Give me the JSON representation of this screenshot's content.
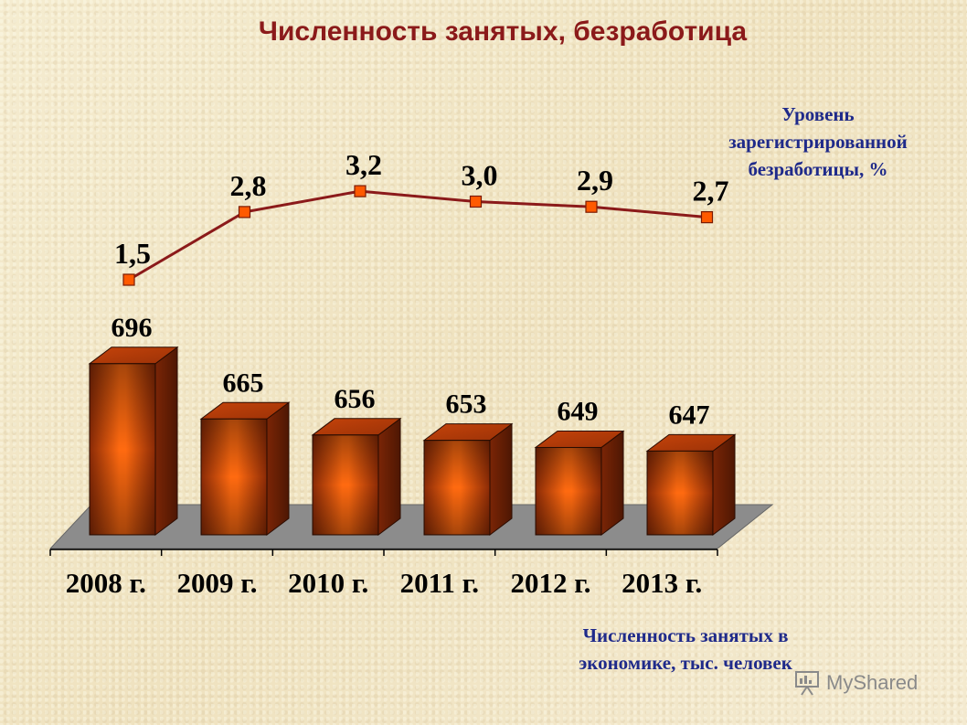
{
  "title": "Численность занятых, безработица",
  "line_legend": "Уровень зарегистрированной безработицы, %",
  "bar_legend": "Численность занятых в экономике, тыс. человек",
  "watermark": "MyShared",
  "colors": {
    "title": "#8b1a1a",
    "legend_text": "#1f2a8a",
    "bar_center": "#ff6a10",
    "bar_edge": "#7a2506",
    "line": "#8b1a1a",
    "marker": "#ff5a00",
    "floor": "#8c8c8c"
  },
  "chart_data": [
    {
      "type": "bar",
      "categories": [
        "2008 г.",
        "2009 г.",
        "2010 г.",
        "2011 г.",
        "2012 г.",
        "2013 г."
      ],
      "series": [
        {
          "name": "Численность занятых в экономике, тыс. человек",
          "values": [
            696,
            665,
            656,
            653,
            649,
            647
          ]
        }
      ],
      "data_labels": [
        "696",
        "665",
        "656",
        "653",
        "649",
        "647"
      ],
      "style": "3d-columns"
    },
    {
      "type": "line",
      "categories": [
        "2008 г.",
        "2009 г.",
        "2010 г.",
        "2011 г.",
        "2012 г.",
        "2013 г."
      ],
      "series": [
        {
          "name": "Уровень зарегистрированной безработицы, %",
          "values": [
            1.5,
            2.8,
            3.2,
            3.0,
            2.9,
            2.7
          ]
        }
      ],
      "data_labels": [
        "1,5",
        "2,8",
        "3,2",
        "3,0",
        "2,9",
        "2,7"
      ],
      "markers": "square"
    }
  ]
}
